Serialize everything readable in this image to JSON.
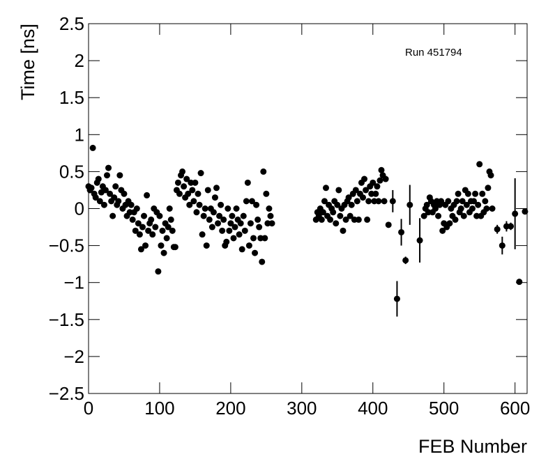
{
  "chart_data": {
    "type": "scatter",
    "annotation": "Run 451794",
    "x_label": "FEB Number",
    "y_label": "Time [ns]",
    "color": "#000000",
    "xlim": [
      0,
      617
    ],
    "ylim": [
      -2.5,
      2.5
    ],
    "xticks": [
      0,
      100,
      200,
      300,
      400,
      500,
      600
    ],
    "yticks": [
      {
        "value": -2.5,
        "label": "−2.5"
      },
      {
        "value": -2,
        "label": "−2"
      },
      {
        "value": -1.5,
        "label": "−1.5"
      },
      {
        "value": -1,
        "label": "−1"
      },
      {
        "value": -0.5,
        "label": "−0.5"
      },
      0,
      0.5,
      1,
      1.5,
      2,
      2.5
    ],
    "x": [
      0,
      2,
      4,
      6,
      8,
      10,
      12,
      14,
      16,
      18,
      20,
      22,
      24,
      26,
      28,
      30,
      32,
      34,
      36,
      38,
      40,
      42,
      44,
      46,
      48,
      50,
      52,
      54,
      56,
      58,
      60,
      62,
      64,
      66,
      68,
      70,
      72,
      74,
      76,
      78,
      80,
      82,
      84,
      86,
      88,
      90,
      92,
      94,
      96,
      98,
      100,
      102,
      104,
      106,
      108,
      110,
      112,
      114,
      116,
      118,
      120,
      122,
      124,
      126,
      128,
      130,
      132,
      134,
      136,
      138,
      140,
      142,
      144,
      146,
      148,
      150,
      152,
      154,
      156,
      158,
      160,
      162,
      164,
      166,
      168,
      170,
      172,
      174,
      176,
      178,
      180,
      182,
      184,
      186,
      188,
      190,
      192,
      194,
      196,
      198,
      200,
      202,
      204,
      206,
      208,
      210,
      212,
      214,
      216,
      218,
      220,
      222,
      224,
      226,
      228,
      230,
      232,
      234,
      236,
      238,
      240,
      242,
      244,
      246,
      248,
      250,
      252,
      254,
      256,
      258,
      320,
      322,
      324,
      326,
      328,
      330,
      332,
      334,
      336,
      338,
      340,
      342,
      344,
      346,
      348,
      350,
      352,
      354,
      356,
      358,
      360,
      362,
      364,
      366,
      368,
      370,
      372,
      374,
      376,
      378,
      380,
      382,
      384,
      386,
      388,
      390,
      392,
      394,
      396,
      398,
      400,
      402,
      404,
      406,
      408,
      410,
      412,
      414,
      416,
      418,
      422,
      428,
      434,
      440,
      446,
      452,
      466,
      472,
      474,
      476,
      478,
      480,
      482,
      484,
      486,
      488,
      490,
      492,
      494,
      496,
      498,
      500,
      502,
      504,
      506,
      508,
      510,
      512,
      514,
      516,
      518,
      520,
      522,
      524,
      526,
      528,
      530,
      532,
      534,
      536,
      538,
      540,
      542,
      544,
      546,
      548,
      550,
      552,
      554,
      556,
      558,
      560,
      562,
      564,
      566,
      568,
      575,
      582,
      588,
      594,
      600,
      606,
      614
    ],
    "values": [
      0.3,
      0.25,
      0.28,
      0.82,
      0.2,
      0.15,
      0.35,
      0.4,
      0.1,
      0.22,
      0.3,
      0.05,
      0.25,
      0.45,
      0.55,
      0.2,
      0.1,
      -0.1,
      0.15,
      0.3,
      0.05,
      0.1,
      0.45,
      0.25,
      0.0,
      0.2,
      0.05,
      -0.1,
      0.1,
      -0.05,
      0.05,
      -0.15,
      -0.05,
      -0.3,
      0.0,
      -0.2,
      -0.35,
      -0.55,
      -0.25,
      -0.1,
      -0.5,
      0.18,
      -0.3,
      -0.2,
      -0.15,
      -0.35,
      0.0,
      -0.25,
      -0.05,
      -0.85,
      -0.1,
      -0.5,
      -0.3,
      -0.6,
      -0.2,
      -0.4,
      -0.25,
      0.0,
      -0.15,
      -0.3,
      -0.52,
      -0.52,
      0.25,
      0.35,
      0.2,
      0.45,
      0.5,
      0.3,
      0.15,
      0.4,
      0.2,
      0.05,
      0.35,
      0.25,
      0.1,
      0.35,
      -0.05,
      0.2,
      0.05,
      0.48,
      -0.35,
      -0.1,
      0.0,
      -0.5,
      0.25,
      -0.15,
      0.0,
      -0.25,
      -0.05,
      0.15,
      0.28,
      -0.2,
      -0.1,
      0.05,
      -0.3,
      -0.15,
      -0.5,
      -0.45,
      0.0,
      -0.3,
      -0.2,
      -0.1,
      -0.4,
      -0.25,
      0.0,
      -0.15,
      -0.35,
      -0.2,
      -0.55,
      -0.1,
      -0.3,
      0.1,
      0.35,
      -0.5,
      -0.2,
      0.1,
      -0.4,
      -0.6,
      0.05,
      -0.15,
      -0.25,
      -0.4,
      -0.72,
      0.5,
      -0.4,
      0.2,
      -0.2,
      0.0,
      -0.1,
      -0.2,
      -0.15,
      -0.05,
      -0.1,
      0.0,
      -0.15,
      -0.05,
      0.1,
      0.28,
      -0.1,
      0.05,
      -0.15,
      0.0,
      -0.05,
      0.1,
      -0.2,
      0.05,
      0.25,
      -0.1,
      0.0,
      -0.3,
      0.05,
      -0.15,
      0.1,
      0.15,
      -0.1,
      0.05,
      0.2,
      -0.15,
      0.25,
      0.1,
      -0.15,
      0.2,
      0.35,
      0.15,
      0.4,
      0.25,
      -0.15,
      0.1,
      0.3,
      0.2,
      0.35,
      0.1,
      0.2,
      0.3,
      0.1,
      0.38,
      0.52,
      0.45,
      0.1,
      0.4,
      -0.22,
      0.1,
      -1.22,
      -0.32,
      -0.7,
      0.05,
      -0.43,
      -0.1,
      0.0,
      0.05,
      -0.05,
      0.15,
      0.1,
      -0.05,
      0.05,
      0.0,
      0.1,
      -0.1,
      0.05,
      0.1,
      -0.3,
      -0.2,
      0.05,
      -0.25,
      0.1,
      -0.2,
      0.0,
      -0.1,
      0.05,
      -0.15,
      0.1,
      0.2,
      -0.05,
      0.0,
      0.1,
      -0.1,
      0.25,
      0.05,
      0.2,
      -0.05,
      0.1,
      0.0,
      0.1,
      0.2,
      -0.1,
      0.05,
      0.6,
      -0.1,
      0.2,
      -0.05,
      0.1,
      0.0,
      0.28,
      0.5,
      0.45,
      0.0,
      -0.28,
      -0.5,
      -0.24,
      -0.24,
      -0.07,
      -0.99,
      -0.04
    ],
    "errors": [
      0.03,
      0.03,
      0.03,
      0.03,
      0.03,
      0.03,
      0.03,
      0.03,
      0.03,
      0.03,
      0.03,
      0.03,
      0.03,
      0.03,
      0.03,
      0.03,
      0.03,
      0.03,
      0.03,
      0.03,
      0.03,
      0.03,
      0.03,
      0.03,
      0.03,
      0.03,
      0.03,
      0.03,
      0.03,
      0.03,
      0.03,
      0.03,
      0.03,
      0.03,
      0.03,
      0.03,
      0.03,
      0.03,
      0.03,
      0.03,
      0.03,
      0.03,
      0.03,
      0.03,
      0.03,
      0.03,
      0.03,
      0.03,
      0.03,
      0.03,
      0.03,
      0.03,
      0.03,
      0.03,
      0.03,
      0.03,
      0.03,
      0.03,
      0.03,
      0.03,
      0.03,
      0.03,
      0.03,
      0.03,
      0.03,
      0.03,
      0.03,
      0.03,
      0.03,
      0.03,
      0.03,
      0.03,
      0.03,
      0.03,
      0.03,
      0.03,
      0.03,
      0.03,
      0.03,
      0.03,
      0.03,
      0.03,
      0.03,
      0.03,
      0.03,
      0.03,
      0.03,
      0.03,
      0.03,
      0.03,
      0.03,
      0.03,
      0.03,
      0.03,
      0.03,
      0.03,
      0.03,
      0.03,
      0.03,
      0.03,
      0.03,
      0.03,
      0.03,
      0.03,
      0.03,
      0.03,
      0.03,
      0.03,
      0.03,
      0.03,
      0.03,
      0.03,
      0.03,
      0.03,
      0.03,
      0.03,
      0.03,
      0.03,
      0.03,
      0.03,
      0.03,
      0.03,
      0.03,
      0.03,
      0.03,
      0.03,
      0.03,
      0.03,
      0.03,
      0.03,
      0.03,
      0.03,
      0.03,
      0.03,
      0.03,
      0.03,
      0.03,
      0.03,
      0.03,
      0.03,
      0.03,
      0.03,
      0.03,
      0.03,
      0.03,
      0.03,
      0.03,
      0.03,
      0.03,
      0.03,
      0.03,
      0.03,
      0.03,
      0.03,
      0.03,
      0.03,
      0.03,
      0.03,
      0.03,
      0.03,
      0.03,
      0.03,
      0.03,
      0.03,
      0.03,
      0.03,
      0.03,
      0.03,
      0.03,
      0.03,
      0.03,
      0.03,
      0.03,
      0.03,
      0.03,
      0.03,
      0.03,
      0.03,
      0.03,
      0.03,
      0.03,
      0.15,
      0.24,
      0.18,
      0.05,
      0.27,
      0.3,
      0.03,
      0.03,
      0.03,
      0.03,
      0.03,
      0.03,
      0.03,
      0.03,
      0.03,
      0.03,
      0.03,
      0.03,
      0.03,
      0.03,
      0.03,
      0.03,
      0.03,
      0.03,
      0.03,
      0.03,
      0.03,
      0.03,
      0.03,
      0.03,
      0.03,
      0.03,
      0.03,
      0.03,
      0.03,
      0.03,
      0.03,
      0.03,
      0.03,
      0.03,
      0.03,
      0.03,
      0.03,
      0.03,
      0.03,
      0.03,
      0.03,
      0.03,
      0.03,
      0.03,
      0.03,
      0.03,
      0.03,
      0.03,
      0.03,
      0.06,
      0.12,
      0.07,
      0.05,
      0.48,
      0.03,
      0.03
    ]
  }
}
